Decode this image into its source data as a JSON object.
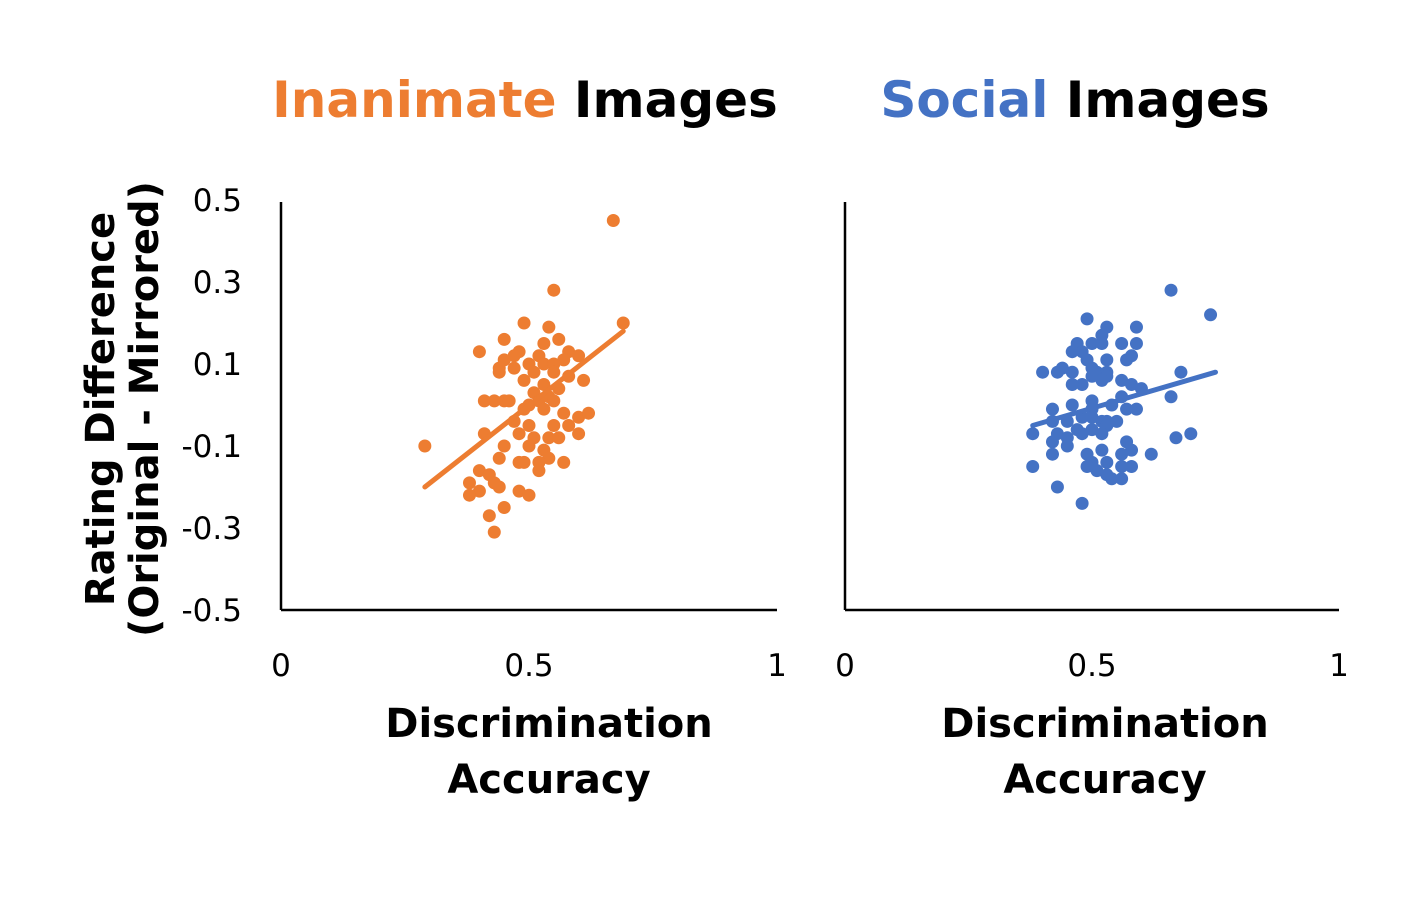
{
  "chart_data": [
    {
      "type": "scatter",
      "title_parts": [
        {
          "text": "Inanimate",
          "color": "#ED7D31"
        },
        {
          "text": " Images",
          "color": "#000000"
        }
      ],
      "xlabel_lines": [
        "Discrimination",
        "Accuracy"
      ],
      "ylabel_lines": [
        "Rating Difference",
        "(Original - Mirrored)"
      ],
      "xlim": [
        0,
        1
      ],
      "ylim": [
        -0.5,
        0.5
      ],
      "xticks": [
        "0",
        "0.5",
        "1"
      ],
      "yticks": [
        "0.5",
        "0.3",
        "0.1",
        "-0.1",
        "-0.3",
        "-0.5"
      ],
      "grid": false,
      "color": "#ED7D31",
      "trendline": {
        "x": [
          0.29,
          0.69
        ],
        "y": [
          -0.2,
          0.18
        ]
      },
      "points": [
        [
          0.67,
          0.45
        ],
        [
          0.55,
          0.28
        ],
        [
          0.69,
          0.2
        ],
        [
          0.49,
          0.2
        ],
        [
          0.54,
          0.19
        ],
        [
          0.56,
          0.16
        ],
        [
          0.45,
          0.16
        ],
        [
          0.53,
          0.15
        ],
        [
          0.4,
          0.13
        ],
        [
          0.48,
          0.13
        ],
        [
          0.52,
          0.12
        ],
        [
          0.58,
          0.13
        ],
        [
          0.6,
          0.12
        ],
        [
          0.45,
          0.11
        ],
        [
          0.47,
          0.12
        ],
        [
          0.57,
          0.11
        ],
        [
          0.5,
          0.1
        ],
        [
          0.53,
          0.1
        ],
        [
          0.55,
          0.1
        ],
        [
          0.44,
          0.09
        ],
        [
          0.47,
          0.09
        ],
        [
          0.51,
          0.08
        ],
        [
          0.55,
          0.08
        ],
        [
          0.58,
          0.07
        ],
        [
          0.44,
          0.08
        ],
        [
          0.49,
          0.06
        ],
        [
          0.53,
          0.05
        ],
        [
          0.61,
          0.06
        ],
        [
          0.56,
          0.04
        ],
        [
          0.51,
          0.03
        ],
        [
          0.54,
          0.02
        ],
        [
          0.55,
          0.01
        ],
        [
          0.41,
          0.01
        ],
        [
          0.43,
          0.01
        ],
        [
          0.45,
          0.01
        ],
        [
          0.46,
          0.01
        ],
        [
          0.5,
          0.0
        ],
        [
          0.52,
          0.01
        ],
        [
          0.49,
          -0.01
        ],
        [
          0.53,
          -0.01
        ],
        [
          0.57,
          -0.02
        ],
        [
          0.6,
          -0.03
        ],
        [
          0.62,
          -0.02
        ],
        [
          0.47,
          -0.04
        ],
        [
          0.5,
          -0.05
        ],
        [
          0.55,
          -0.05
        ],
        [
          0.58,
          -0.05
        ],
        [
          0.41,
          -0.07
        ],
        [
          0.48,
          -0.07
        ],
        [
          0.51,
          -0.08
        ],
        [
          0.54,
          -0.08
        ],
        [
          0.56,
          -0.08
        ],
        [
          0.6,
          -0.07
        ],
        [
          0.45,
          -0.1
        ],
        [
          0.5,
          -0.1
        ],
        [
          0.53,
          -0.11
        ],
        [
          0.29,
          -0.1
        ],
        [
          0.54,
          -0.13
        ],
        [
          0.57,
          -0.14
        ],
        [
          0.48,
          -0.14
        ],
        [
          0.49,
          -0.14
        ],
        [
          0.44,
          -0.13
        ],
        [
          0.52,
          -0.14
        ],
        [
          0.52,
          -0.16
        ],
        [
          0.4,
          -0.16
        ],
        [
          0.42,
          -0.17
        ],
        [
          0.43,
          -0.19
        ],
        [
          0.38,
          -0.19
        ],
        [
          0.4,
          -0.21
        ],
        [
          0.44,
          -0.2
        ],
        [
          0.38,
          -0.22
        ],
        [
          0.48,
          -0.21
        ],
        [
          0.5,
          -0.22
        ],
        [
          0.45,
          -0.25
        ],
        [
          0.42,
          -0.27
        ],
        [
          0.43,
          -0.31
        ]
      ]
    },
    {
      "type": "scatter",
      "title_parts": [
        {
          "text": "Social",
          "color": "#4472C4"
        },
        {
          "text": " Images",
          "color": "#000000"
        }
      ],
      "xlabel_lines": [
        "Discrimination",
        "Accuracy"
      ],
      "xlim": [
        0,
        1
      ],
      "ylim": [
        -0.5,
        0.5
      ],
      "xticks": [
        "0",
        "0.5",
        "1"
      ],
      "grid": false,
      "color": "#4472C4",
      "trendline": {
        "x": [
          0.38,
          0.75
        ],
        "y": [
          -0.05,
          0.08
        ]
      },
      "points": [
        [
          0.66,
          0.28
        ],
        [
          0.74,
          0.22
        ],
        [
          0.49,
          0.21
        ],
        [
          0.53,
          0.19
        ],
        [
          0.59,
          0.19
        ],
        [
          0.52,
          0.17
        ],
        [
          0.56,
          0.15
        ],
        [
          0.59,
          0.15
        ],
        [
          0.5,
          0.15
        ],
        [
          0.47,
          0.15
        ],
        [
          0.46,
          0.13
        ],
        [
          0.48,
          0.13
        ],
        [
          0.52,
          0.15
        ],
        [
          0.53,
          0.11
        ],
        [
          0.57,
          0.11
        ],
        [
          0.58,
          0.12
        ],
        [
          0.49,
          0.11
        ],
        [
          0.46,
          0.08
        ],
        [
          0.5,
          0.09
        ],
        [
          0.51,
          0.08
        ],
        [
          0.53,
          0.08
        ],
        [
          0.68,
          0.08
        ],
        [
          0.4,
          0.08
        ],
        [
          0.43,
          0.08
        ],
        [
          0.44,
          0.09
        ],
        [
          0.5,
          0.07
        ],
        [
          0.53,
          0.07
        ],
        [
          0.52,
          0.06
        ],
        [
          0.56,
          0.06
        ],
        [
          0.58,
          0.05
        ],
        [
          0.46,
          0.05
        ],
        [
          0.48,
          0.05
        ],
        [
          0.6,
          0.04
        ],
        [
          0.56,
          0.02
        ],
        [
          0.66,
          0.02
        ],
        [
          0.5,
          0.01
        ],
        [
          0.54,
          0.0
        ],
        [
          0.46,
          0.0
        ],
        [
          0.5,
          -0.01
        ],
        [
          0.42,
          -0.01
        ],
        [
          0.57,
          -0.01
        ],
        [
          0.59,
          -0.01
        ],
        [
          0.48,
          -0.03
        ],
        [
          0.5,
          -0.03
        ],
        [
          0.52,
          -0.04
        ],
        [
          0.53,
          -0.04
        ],
        [
          0.45,
          -0.04
        ],
        [
          0.42,
          -0.04
        ],
        [
          0.38,
          -0.07
        ],
        [
          0.43,
          -0.07
        ],
        [
          0.47,
          -0.06
        ],
        [
          0.5,
          -0.06
        ],
        [
          0.53,
          -0.05
        ],
        [
          0.55,
          -0.04
        ],
        [
          0.45,
          -0.08
        ],
        [
          0.48,
          -0.07
        ],
        [
          0.52,
          -0.07
        ],
        [
          0.57,
          -0.09
        ],
        [
          0.42,
          -0.09
        ],
        [
          0.45,
          -0.1
        ],
        [
          0.52,
          -0.11
        ],
        [
          0.58,
          -0.11
        ],
        [
          0.56,
          -0.12
        ],
        [
          0.62,
          -0.12
        ],
        [
          0.49,
          -0.12
        ],
        [
          0.42,
          -0.12
        ],
        [
          0.67,
          -0.08
        ],
        [
          0.7,
          -0.07
        ],
        [
          0.5,
          -0.14
        ],
        [
          0.53,
          -0.14
        ],
        [
          0.51,
          -0.16
        ],
        [
          0.49,
          -0.15
        ],
        [
          0.56,
          -0.15
        ],
        [
          0.58,
          -0.15
        ],
        [
          0.38,
          -0.15
        ],
        [
          0.53,
          -0.17
        ],
        [
          0.56,
          -0.18
        ],
        [
          0.54,
          -0.18
        ],
        [
          0.43,
          -0.2
        ],
        [
          0.48,
          -0.24
        ]
      ]
    }
  ]
}
